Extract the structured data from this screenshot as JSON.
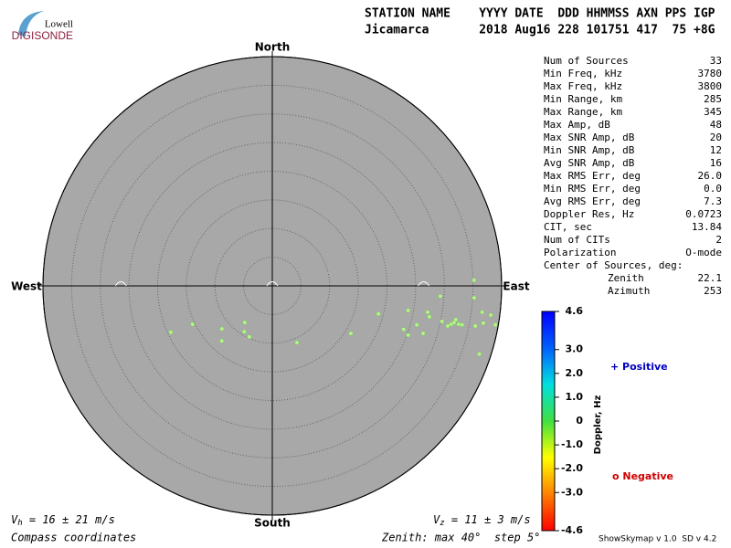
{
  "header": {
    "line1": "STATION NAME    YYYY DATE  DDD HHMMSS AXN PPS IGP",
    "line2": "Jicamarca       2018 Aug16 228 101751 417  75 +8G"
  },
  "logo": {
    "top": "Lowell",
    "bottom": "DIGISONDE"
  },
  "stats": [
    [
      "Num of Sources",
      "33"
    ],
    [
      "Min Freq, kHz",
      "3780"
    ],
    [
      "Max Freq, kHz",
      "3800"
    ],
    [
      "Min Range, km",
      "285"
    ],
    [
      "Max Range, km",
      "345"
    ],
    [
      "Max Amp, dB",
      "48"
    ],
    [
      "Max SNR Amp, dB",
      "20"
    ],
    [
      "Min SNR Amp, dB",
      "12"
    ],
    [
      "Avg SNR Amp, dB",
      "16"
    ],
    [
      "Max RMS Err, deg",
      "26.0"
    ],
    [
      "Min RMS Err, deg",
      "0.0"
    ],
    [
      "Avg RMS Err, deg",
      "7.3"
    ],
    [
      "Doppler Res, Hz",
      "0.0723"
    ],
    [
      "CIT, sec",
      "13.84"
    ],
    [
      "Num of CITs",
      "2"
    ],
    [
      "Polarization",
      "O-mode"
    ]
  ],
  "center": {
    "title": "Center of Sources, deg:",
    "rows": [
      [
        "Zenith",
        "22.1"
      ],
      [
        "Azimuth",
        "253"
      ]
    ]
  },
  "footer": {
    "vh": {
      "symbol": "V",
      "sub": "h",
      "text": " = 16 ± 21 m/s"
    },
    "vz": {
      "symbol": "V",
      "sub": "z",
      "text": " = 11 ± 3 m/s"
    },
    "coords": "Compass coordinates",
    "zenith": "Zenith: max 40°  step 5°",
    "version": "ShowSkymap v 1.0  SD v 4.2"
  },
  "chart_data": {
    "type": "skymap",
    "directions": {
      "north": "North",
      "south": "South",
      "west": "West",
      "east": "East"
    },
    "zlim": [
      0,
      40
    ],
    "zticks": [
      5,
      10,
      15,
      20,
      25,
      30,
      35,
      40
    ],
    "point_color": "#b4f58c",
    "disk_color": "#a8a8a8",
    "x": [
      -17.7,
      -13.9,
      -8.8,
      -8.8,
      -4.8,
      -4.9,
      -4.0,
      4.3,
      13.7,
      18.5,
      23.7,
      23.7,
      22.9,
      25.2,
      26.3,
      27.1,
      27.4,
      29.3,
      29.6,
      30.6,
      31.2,
      31.7,
      32.0,
      32.5,
      33.1,
      35.2,
      35.2,
      35.4,
      36.6,
      36.8,
      38.1,
      38.9,
      36.1
    ],
    "y": [
      -8.1,
      -6.7,
      -7.5,
      -9.6,
      -6.4,
      -8.0,
      -8.9,
      -9.9,
      -8.3,
      -4.9,
      -4.3,
      -8.6,
      -7.6,
      -6.8,
      -8.3,
      -4.6,
      -5.4,
      -1.8,
      -6.2,
      -7.0,
      -6.7,
      -6.4,
      -5.9,
      -6.7,
      -6.8,
      1.0,
      -2.1,
      -7.0,
      -4.6,
      -6.5,
      -5.1,
      -6.8,
      -11.9
    ],
    "colorbar": {
      "label": "Doppler, Hz",
      "lim": [
        -4.6,
        4.6
      ],
      "colors": [
        "#ff0000",
        "#ff8000",
        "#ffff00",
        "#40e040",
        "#00e0e0",
        "#0060ff",
        "#0000ff"
      ],
      "ticks": [
        4.6,
        {
          "value": 3,
          "label": "3.0"
        },
        {
          "value": 2,
          "label": "2.0"
        },
        {
          "value": 1,
          "label": "1.0"
        },
        0,
        {
          "value": -1,
          "label": "-1.0"
        },
        {
          "value": -2,
          "label": "-2.0"
        },
        {
          "value": -3,
          "label": "-3.0"
        },
        -4.6
      ]
    },
    "legend": {
      "positive": "+ Positive",
      "negative": "o Negative"
    }
  }
}
